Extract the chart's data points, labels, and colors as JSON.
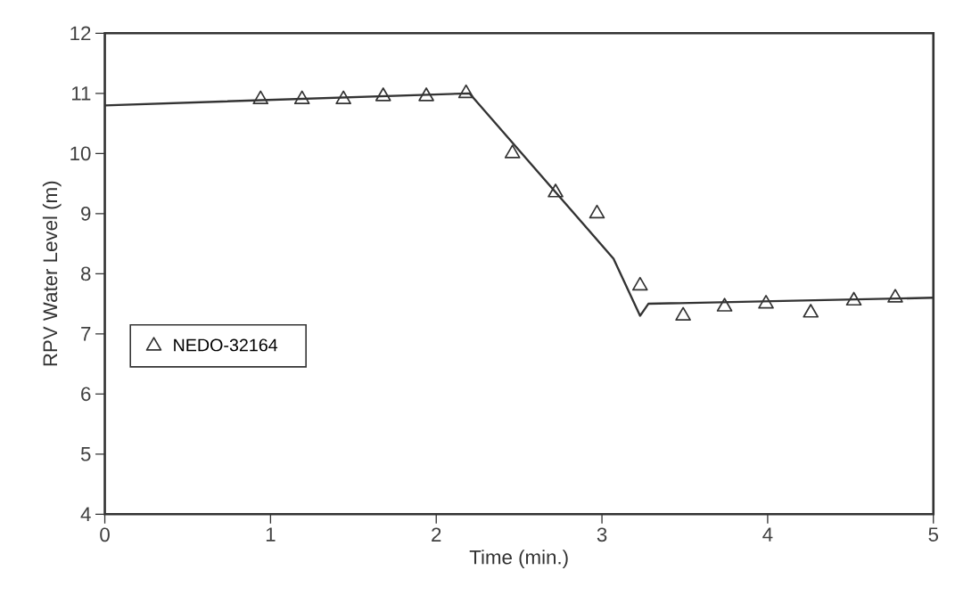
{
  "chart_data": {
    "type": "line",
    "xlabel": "Time (min.)",
    "ylabel": "RPV Water Level (m)",
    "xlim": [
      0,
      5
    ],
    "ylim": [
      4,
      12
    ],
    "xticks": [
      0,
      1,
      2,
      3,
      4,
      5
    ],
    "yticks": [
      4,
      5,
      6,
      7,
      8,
      9,
      10,
      11,
      12
    ],
    "grid": false,
    "legend": "left",
    "series": [
      {
        "color": "#333333",
        "marker": "none",
        "line_style": "solid",
        "x": [
          0,
          2.2,
          3.07,
          3.23,
          3.28,
          5
        ],
        "values": [
          10.8,
          11.0,
          8.25,
          7.3,
          7.5,
          7.6
        ]
      },
      {
        "type": "scatter",
        "name": "NEDO-32164",
        "color": "#333333",
        "marker": "triangle",
        "x": [
          0.94,
          1.19,
          1.44,
          1.68,
          1.94,
          2.18,
          2.46,
          2.72,
          2.97,
          3.23,
          3.49,
          3.74,
          3.99,
          4.26,
          4.52,
          4.77
        ],
        "values": [
          10.9,
          10.9,
          10.9,
          10.95,
          10.95,
          11.0,
          10.0,
          9.35,
          9.0,
          7.8,
          7.3,
          7.45,
          7.5,
          7.35,
          7.55,
          7.6
        ]
      }
    ]
  }
}
